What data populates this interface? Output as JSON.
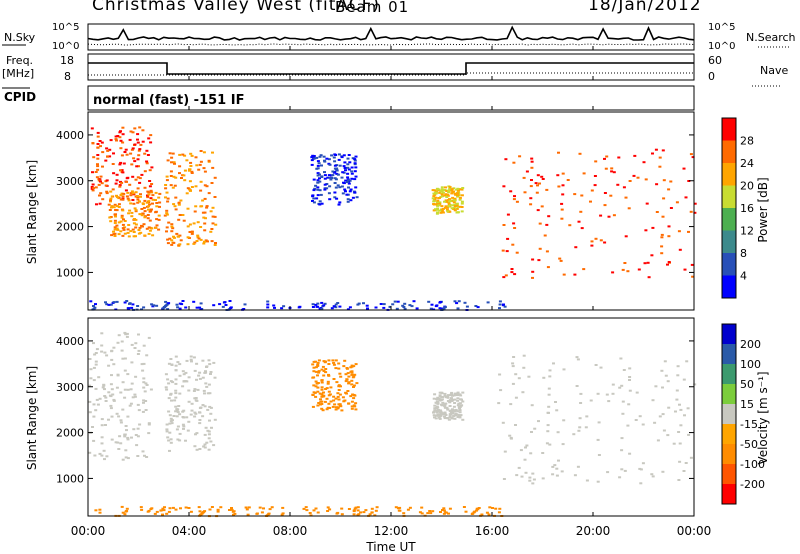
{
  "header": {
    "radar": "Christmas Valley West (fitACF)",
    "beam": "Beam 01",
    "date": "18/Jan/2012"
  },
  "aux_labels": {
    "nsky": "N.Sky",
    "nsearch": "N.Search",
    "freq": "Freq.",
    "freq_unit": "[MHz]",
    "nave": "Nave",
    "cpid": "CPID",
    "cpid_text": "normal (fast) -151 IF",
    "noise_ticks": [
      "10^5",
      "10^0"
    ],
    "freq_ticks": [
      "18",
      "8"
    ],
    "nave_ticks": [
      "60",
      "0"
    ]
  },
  "chart_data": [
    {
      "type": "heatmap",
      "title": "",
      "xlabel": "",
      "ylabel": "Slant Range [km]",
      "xlim_hours": [
        0,
        24
      ],
      "ylim": [
        180,
        4500
      ],
      "x_ticks": [
        "00:00",
        "04:00",
        "08:00",
        "12:00",
        "16:00",
        "20:00",
        "00:00"
      ],
      "y_ticks": [
        1000,
        2000,
        3000,
        4000
      ],
      "colorbar": {
        "label": "Power [dB]",
        "ticks": [
          4,
          8,
          12,
          16,
          20,
          24,
          28
        ],
        "colors": [
          "#0000ff",
          "#2850b8",
          "#3c8a8c",
          "#4caf50",
          "#c8dc32",
          "#ffa500",
          "#ff6a00",
          "#ff0000"
        ]
      },
      "echo_regions": [
        {
          "t": [
            0.1,
            2.5
          ],
          "r": [
            2500,
            4200
          ],
          "value": 28
        },
        {
          "t": [
            0.8,
            2.8
          ],
          "r": [
            1800,
            2800
          ],
          "value": 24
        },
        {
          "t": [
            3.0,
            5.0
          ],
          "r": [
            1600,
            3700
          ],
          "value": 24
        },
        {
          "t": [
            8.8,
            10.6
          ],
          "r": [
            2500,
            3600
          ],
          "value": 4
        },
        {
          "t": [
            13.6,
            14.8
          ],
          "r": [
            2300,
            2900
          ],
          "value": 20
        },
        {
          "t": [
            16.2,
            24.0
          ],
          "r": [
            900,
            3700
          ],
          "value": 28
        },
        {
          "t": [
            0.0,
            16.5
          ],
          "r": [
            200,
            400
          ],
          "value": 4
        }
      ]
    },
    {
      "type": "heatmap",
      "title": "",
      "xlabel": "Time UT",
      "ylabel": "Slant Range [km]",
      "xlim_hours": [
        0,
        24
      ],
      "ylim": [
        180,
        4500
      ],
      "x_ticks": [
        "00:00",
        "04:00",
        "08:00",
        "12:00",
        "16:00",
        "20:00",
        "00:00"
      ],
      "y_ticks": [
        1000,
        2000,
        3000,
        4000
      ],
      "colorbar": {
        "label": "Velocity [m s⁻¹]",
        "ticks": [
          -200,
          -100,
          -50,
          -15,
          15,
          50,
          100,
          200
        ],
        "colors": [
          "#ff0000",
          "#ff5500",
          "#ff8c00",
          "#ffa500",
          "#c8c8c0",
          "#7ccd3c",
          "#3c9a6e",
          "#2a5aa8",
          "#0000cd"
        ]
      },
      "echo_regions": [
        {
          "t": [
            0.0,
            2.5
          ],
          "r": [
            1400,
            4200
          ],
          "value": 0
        },
        {
          "t": [
            3.0,
            5.0
          ],
          "r": [
            1600,
            3700
          ],
          "value": 0
        },
        {
          "t": [
            8.8,
            10.6
          ],
          "r": [
            2500,
            3600
          ],
          "value": -60
        },
        {
          "t": [
            13.6,
            14.8
          ],
          "r": [
            2300,
            2900
          ],
          "value": 0
        },
        {
          "t": [
            16.2,
            24.0
          ],
          "r": [
            900,
            3700
          ],
          "value": 0
        },
        {
          "t": [
            0.0,
            16.5
          ],
          "r": [
            200,
            400
          ],
          "value": -60
        }
      ]
    }
  ]
}
